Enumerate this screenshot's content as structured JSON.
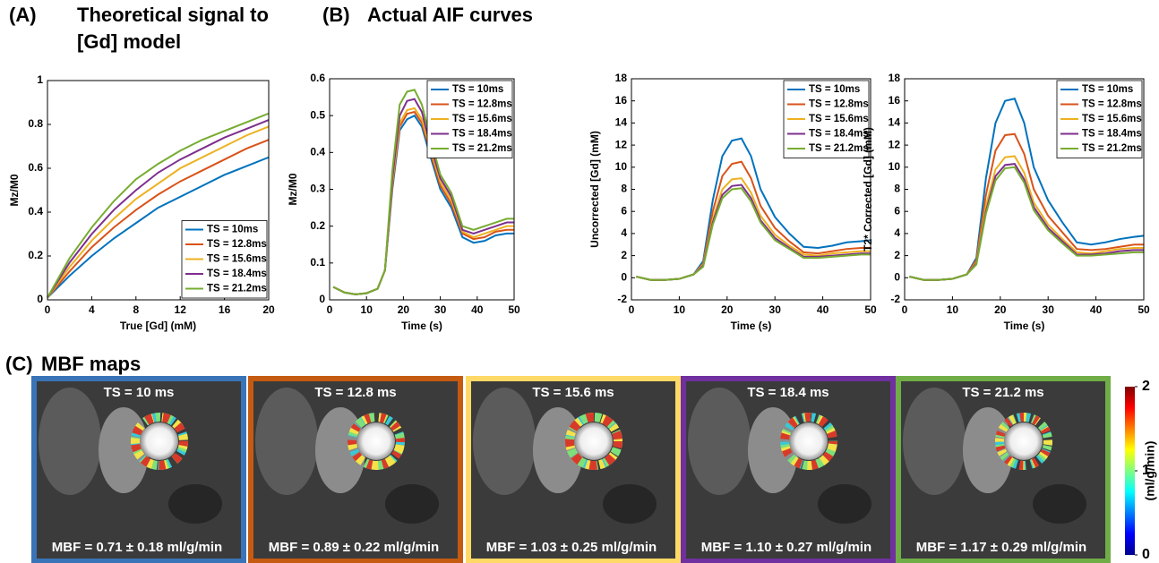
{
  "chart_data": [
    {
      "type": "line",
      "panel_label": "(A)",
      "title": "Theoretical signal to [Gd] model",
      "xlabel": "True [Gd] (mM)",
      "ylabel": "Mz/M0",
      "x": [
        0,
        2,
        4,
        6,
        8,
        10,
        12,
        14,
        16,
        18,
        20
      ],
      "xlim": [
        0,
        20
      ],
      "xticks": [
        0,
        4,
        8,
        12,
        16,
        20
      ],
      "ylim": [
        0,
        1
      ],
      "yticks": [
        0,
        0.2,
        0.4,
        0.6,
        0.8,
        1
      ],
      "legend": "lower right",
      "series": [
        {
          "name": "TS = 10ms",
          "color": "#0072bd",
          "values": [
            0.01,
            0.11,
            0.2,
            0.28,
            0.35,
            0.42,
            0.47,
            0.52,
            0.57,
            0.61,
            0.65
          ]
        },
        {
          "name": "TS = 12.8ms",
          "color": "#d95319",
          "values": [
            0.01,
            0.13,
            0.24,
            0.33,
            0.41,
            0.48,
            0.54,
            0.59,
            0.64,
            0.69,
            0.73
          ]
        },
        {
          "name": "TS = 15.6ms",
          "color": "#edb120",
          "values": [
            0.01,
            0.15,
            0.27,
            0.37,
            0.46,
            0.53,
            0.6,
            0.65,
            0.7,
            0.75,
            0.79
          ]
        },
        {
          "name": "TS = 18.4ms",
          "color": "#7e2f8e",
          "values": [
            0.01,
            0.17,
            0.3,
            0.41,
            0.5,
            0.58,
            0.64,
            0.69,
            0.74,
            0.78,
            0.82
          ]
        },
        {
          "name": "TS = 21.2ms",
          "color": "#77ac30",
          "values": [
            0.01,
            0.19,
            0.33,
            0.45,
            0.55,
            0.62,
            0.68,
            0.73,
            0.77,
            0.81,
            0.85
          ]
        }
      ]
    },
    {
      "type": "line",
      "xlabel": "Time (s)",
      "ylabel": "Mz/M0",
      "x": [
        1,
        4,
        7,
        10,
        13,
        15,
        17,
        19,
        21,
        23,
        25,
        27,
        30,
        33,
        36,
        39,
        42,
        45,
        48,
        50
      ],
      "xlim": [
        0,
        50
      ],
      "xticks": [
        0,
        10,
        20,
        30,
        40,
        50
      ],
      "ylim": [
        0,
        0.6
      ],
      "yticks": [
        0,
        0.1,
        0.2,
        0.3,
        0.4,
        0.5,
        0.6
      ],
      "legend": "upper right",
      "series": [
        {
          "name": "TS = 10ms",
          "color": "#0072bd",
          "values": [
            0.035,
            0.02,
            0.015,
            0.018,
            0.03,
            0.08,
            0.3,
            0.46,
            0.49,
            0.5,
            0.47,
            0.4,
            0.3,
            0.25,
            0.17,
            0.155,
            0.16,
            0.175,
            0.18,
            0.18
          ]
        },
        {
          "name": "TS = 12.8ms",
          "color": "#d95319",
          "values": [
            0.035,
            0.02,
            0.015,
            0.018,
            0.03,
            0.08,
            0.31,
            0.47,
            0.505,
            0.51,
            0.48,
            0.41,
            0.31,
            0.26,
            0.18,
            0.165,
            0.17,
            0.185,
            0.19,
            0.19
          ]
        },
        {
          "name": "TS = 15.6ms",
          "color": "#edb120",
          "values": [
            0.035,
            0.02,
            0.015,
            0.018,
            0.03,
            0.08,
            0.32,
            0.48,
            0.515,
            0.52,
            0.49,
            0.42,
            0.32,
            0.27,
            0.185,
            0.17,
            0.18,
            0.19,
            0.2,
            0.2
          ]
        },
        {
          "name": "TS = 18.4ms",
          "color": "#7e2f8e",
          "values": [
            0.035,
            0.02,
            0.015,
            0.018,
            0.03,
            0.08,
            0.33,
            0.5,
            0.54,
            0.545,
            0.51,
            0.43,
            0.33,
            0.28,
            0.19,
            0.18,
            0.19,
            0.2,
            0.21,
            0.21
          ]
        },
        {
          "name": "TS = 21.2ms",
          "color": "#77ac30",
          "values": [
            0.035,
            0.02,
            0.015,
            0.018,
            0.03,
            0.08,
            0.35,
            0.53,
            0.565,
            0.57,
            0.53,
            0.45,
            0.34,
            0.29,
            0.2,
            0.19,
            0.2,
            0.21,
            0.22,
            0.22
          ]
        }
      ]
    },
    {
      "type": "line",
      "xlabel": "Time (s)",
      "ylabel": "Uncorrected [Gd] (mM)",
      "x": [
        1,
        4,
        7,
        10,
        13,
        15,
        17,
        19,
        21,
        23,
        25,
        27,
        30,
        33,
        36,
        39,
        42,
        45,
        48,
        50
      ],
      "xlim": [
        0,
        50
      ],
      "xticks": [
        0,
        10,
        20,
        30,
        40,
        50
      ],
      "ylim": [
        -2,
        18
      ],
      "yticks": [
        -2,
        0,
        2,
        4,
        6,
        8,
        10,
        12,
        14,
        16,
        18
      ],
      "legend": "upper right",
      "series": [
        {
          "name": "TS = 10ms",
          "color": "#0072bd",
          "values": [
            0.1,
            -0.2,
            -0.2,
            -0.1,
            0.3,
            1.5,
            7,
            11,
            12.4,
            12.6,
            11,
            8,
            5.5,
            4,
            2.8,
            2.7,
            2.9,
            3.2,
            3.3,
            3.4
          ]
        },
        {
          "name": "TS = 12.8ms",
          "color": "#d95319",
          "values": [
            0.1,
            -0.2,
            -0.2,
            -0.1,
            0.3,
            1.3,
            6,
            9.2,
            10.3,
            10.5,
            9,
            6.5,
            4.5,
            3.3,
            2.3,
            2.2,
            2.4,
            2.6,
            2.7,
            2.7
          ]
        },
        {
          "name": "TS = 15.6ms",
          "color": "#edb120",
          "values": [
            0.1,
            -0.2,
            -0.2,
            -0.1,
            0.3,
            1.2,
            5.3,
            8,
            8.9,
            9,
            7.7,
            5.6,
            3.9,
            2.9,
            2.1,
            2,
            2.2,
            2.3,
            2.4,
            2.4
          ]
        },
        {
          "name": "TS = 18.4ms",
          "color": "#7e2f8e",
          "values": [
            0.1,
            -0.2,
            -0.2,
            -0.1,
            0.3,
            1.1,
            5,
            7.5,
            8.3,
            8.4,
            7.2,
            5.2,
            3.6,
            2.7,
            1.9,
            1.9,
            2,
            2.1,
            2.2,
            2.2
          ]
        },
        {
          "name": "TS = 21.2ms",
          "color": "#77ac30",
          "values": [
            0.1,
            -0.2,
            -0.2,
            -0.1,
            0.3,
            1,
            4.8,
            7.2,
            8,
            8.1,
            6.9,
            5,
            3.4,
            2.6,
            1.8,
            1.8,
            1.9,
            2,
            2.1,
            2.1
          ]
        }
      ]
    },
    {
      "type": "line",
      "xlabel": "Time (s)",
      "ylabel": "T2* Corrected [Gd] (mM)",
      "x": [
        1,
        4,
        7,
        10,
        13,
        15,
        17,
        19,
        21,
        23,
        25,
        27,
        30,
        33,
        36,
        39,
        42,
        45,
        48,
        50
      ],
      "xlim": [
        0,
        50
      ],
      "xticks": [
        0,
        10,
        20,
        30,
        40,
        50
      ],
      "ylim": [
        -2,
        18
      ],
      "yticks": [
        -2,
        0,
        2,
        4,
        6,
        8,
        10,
        12,
        14,
        16,
        18
      ],
      "legend": "upper right",
      "series": [
        {
          "name": "TS = 10ms",
          "color": "#0072bd",
          "values": [
            0.1,
            -0.2,
            -0.2,
            -0.1,
            0.3,
            1.8,
            9,
            14,
            16,
            16.2,
            14,
            10,
            7,
            5,
            3.2,
            3,
            3.2,
            3.5,
            3.7,
            3.8
          ]
        },
        {
          "name": "TS = 12.8ms",
          "color": "#d95319",
          "values": [
            0.1,
            -0.2,
            -0.2,
            -0.1,
            0.3,
            1.6,
            7.5,
            11.5,
            12.9,
            13,
            11.2,
            8,
            5.6,
            4.1,
            2.6,
            2.5,
            2.6,
            2.8,
            3,
            3
          ]
        },
        {
          "name": "TS = 15.6ms",
          "color": "#edb120",
          "values": [
            0.1,
            -0.2,
            -0.2,
            -0.1,
            0.3,
            1.4,
            6.5,
            9.8,
            10.9,
            11,
            9.5,
            6.8,
            4.8,
            3.5,
            2.3,
            2.2,
            2.4,
            2.6,
            2.7,
            2.7
          ]
        },
        {
          "name": "TS = 18.4ms",
          "color": "#7e2f8e",
          "values": [
            0.1,
            -0.2,
            -0.2,
            -0.1,
            0.3,
            1.3,
            6,
            9.2,
            10.2,
            10.3,
            8.9,
            6.4,
            4.5,
            3.3,
            2.1,
            2.1,
            2.2,
            2.4,
            2.5,
            2.5
          ]
        },
        {
          "name": "TS = 21.2ms",
          "color": "#77ac30",
          "values": [
            0.1,
            -0.2,
            -0.2,
            -0.1,
            0.3,
            1.2,
            5.8,
            8.8,
            9.9,
            10,
            8.6,
            6.1,
            4.3,
            3.1,
            2,
            2,
            2.1,
            2.2,
            2.3,
            2.3
          ]
        }
      ]
    }
  ],
  "panel_b": {
    "label": "(B)",
    "title": "Actual AIF curves"
  },
  "panel_c": {
    "label": "(C)",
    "title": "MBF maps",
    "maps": [
      {
        "title": "TS = 10 ms",
        "caption": "MBF = 0.71 ± 0.18 ml/g/min",
        "color": "#3a74b8"
      },
      {
        "title": "TS = 12.8 ms",
        "caption": "MBF = 0.89 ± 0.22 ml/g/min",
        "color": "#c55a11"
      },
      {
        "title": "TS = 15.6 ms",
        "caption": "MBF = 1.03 ± 0.25 ml/g/min",
        "color": "#ffd966"
      },
      {
        "title": "TS = 18.4 ms",
        "caption": "MBF = 1.10 ± 0.27 ml/g/min",
        "color": "#7030a0"
      },
      {
        "title": "TS = 21.2 ms",
        "caption": "MBF = 1.17 ± 0.29 ml/g/min",
        "color": "#70ad47"
      }
    ],
    "colorbar": {
      "label": "(ml/g/min)",
      "lim": [
        0,
        2
      ],
      "ticks": [
        0,
        1,
        2
      ]
    }
  }
}
